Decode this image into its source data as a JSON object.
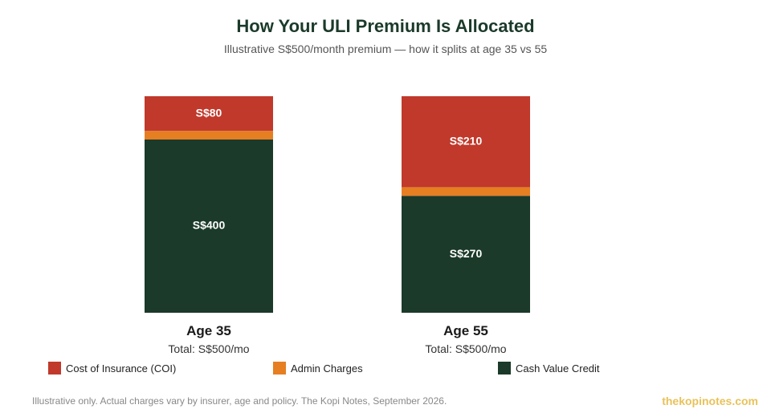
{
  "header": {
    "title": "How Your ULI Premium Is Allocated",
    "subtitle": "Illustrative S$500/month premium — how it splits at age 35 vs 55"
  },
  "chart_data": {
    "type": "bar",
    "stacked": true,
    "categories": [
      "Age 35",
      "Age 55"
    ],
    "category_subtitles": [
      "Total: S$500/mo",
      "Total: S$500/mo"
    ],
    "series": [
      {
        "name": "Cash Value Credit",
        "values": [
          400,
          270
        ],
        "labels": [
          "S$400",
          "S$270"
        ],
        "color": "#1b3a2a"
      },
      {
        "name": "Admin Charges",
        "values": [
          20,
          20
        ],
        "labels": [
          "",
          ""
        ],
        "color": "#e67e22"
      },
      {
        "name": "Cost of Insurance (COI)",
        "values": [
          80,
          210
        ],
        "labels": [
          "S$80",
          "S$210"
        ],
        "color": "#c0392b"
      }
    ],
    "ylim": [
      0,
      500
    ],
    "grid": false,
    "legend_position": "bottom"
  },
  "legend": {
    "items": [
      {
        "label": "Cost of Insurance (COI)",
        "color": "#c0392b"
      },
      {
        "label": "Admin Charges",
        "color": "#e67e22"
      },
      {
        "label": "Cash Value Credit",
        "color": "#1b3a2a"
      }
    ]
  },
  "footer": {
    "note": "Illustrative only. Actual charges vary by insurer, age and policy. The Kopi Notes, September 2026.",
    "brand": "thekopinotes.com"
  }
}
